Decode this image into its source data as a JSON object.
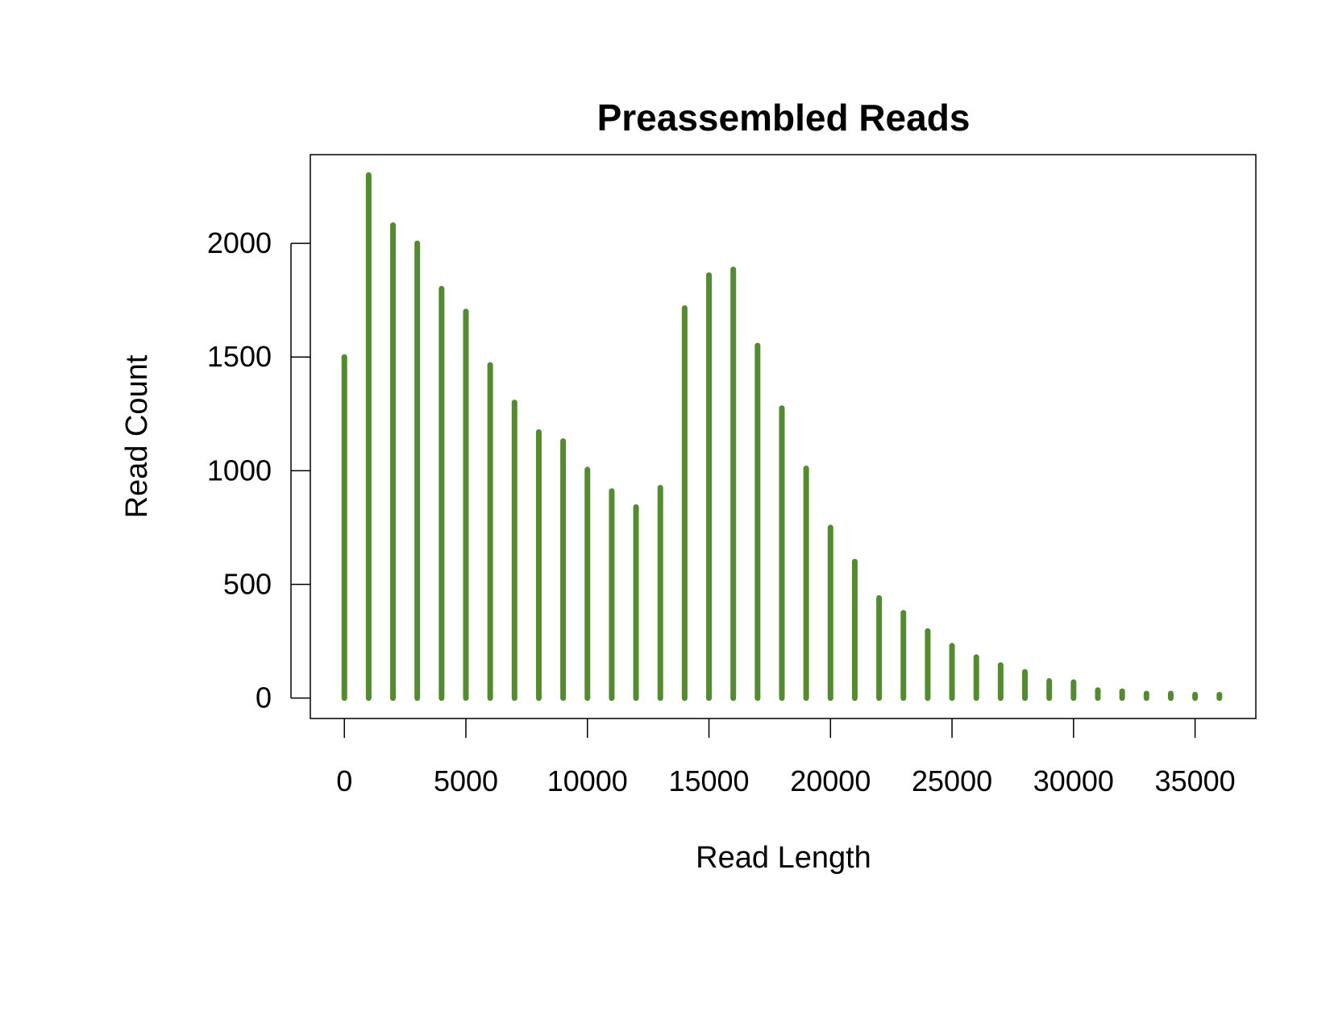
{
  "chart_data": {
    "type": "bar",
    "title": "Preassembled Reads",
    "xlabel": "Read Length",
    "ylabel": "Read Count",
    "xlim": [
      -1400,
      37500
    ],
    "ylim": [
      -90,
      2390
    ],
    "x_ticks": [
      0,
      5000,
      10000,
      15000,
      20000,
      25000,
      30000,
      35000
    ],
    "x_tick_labels": [
      "0",
      "5000",
      "10000",
      "15000",
      "20000",
      "25000",
      "30000",
      "35000"
    ],
    "y_ticks": [
      0,
      500,
      1000,
      1500,
      2000
    ],
    "y_tick_labels": [
      "0",
      "500",
      "1000",
      "1500",
      "2000"
    ],
    "grid": false,
    "legend": "none",
    "bar_color": "#548b31",
    "x": [
      0,
      1000,
      2000,
      3000,
      4000,
      5000,
      6000,
      7000,
      8000,
      9000,
      10000,
      11000,
      12000,
      13000,
      14000,
      15000,
      16000,
      17000,
      18000,
      19000,
      20000,
      21000,
      22000,
      23000,
      24000,
      25000,
      26000,
      27000,
      28000,
      29000,
      30000,
      31000,
      32000,
      33000,
      34000,
      35000,
      36000
    ],
    "values": [
      1500,
      2300,
      2080,
      2000,
      1800,
      1700,
      1465,
      1300,
      1170,
      1130,
      1005,
      910,
      840,
      925,
      1715,
      1860,
      1885,
      1550,
      1275,
      1010,
      750,
      600,
      440,
      375,
      295,
      230,
      180,
      145,
      115,
      75,
      70,
      35,
      30,
      20,
      20,
      15,
      15
    ]
  }
}
